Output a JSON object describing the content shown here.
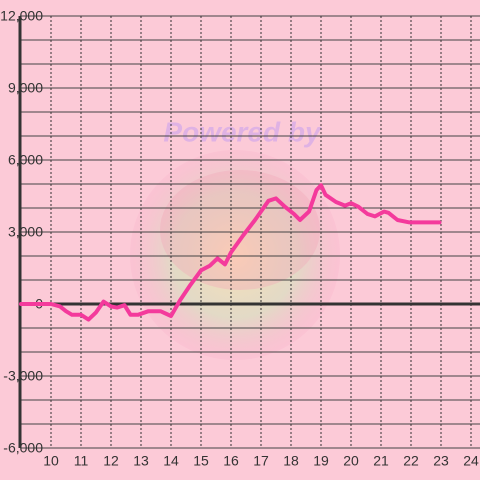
{
  "chart_data": {
    "type": "line",
    "watermark": "Powered by",
    "x": [
      9,
      10,
      10.3,
      10.5,
      10.7,
      11,
      11.25,
      11.5,
      11.75,
      12,
      12.2,
      12.45,
      12.65,
      12.9,
      13.25,
      13.65,
      14,
      14.3,
      14.65,
      15,
      15.3,
      15.55,
      15.8,
      16,
      16.4,
      16.8,
      17.25,
      17.5,
      17.8,
      18.1,
      18.3,
      18.6,
      18.85,
      19,
      19.15,
      19.5,
      19.8,
      20,
      20.25,
      20.55,
      20.8,
      21.1,
      21.25,
      21.55,
      21.95,
      22.95
    ],
    "values": [
      0,
      0,
      -100,
      -300,
      -450,
      -450,
      -650,
      -350,
      100,
      -100,
      -150,
      -50,
      -450,
      -450,
      -300,
      -300,
      -500,
      150,
      800,
      1400,
      1600,
      1900,
      1650,
      2150,
      2850,
      3500,
      4300,
      4400,
      4050,
      3750,
      3500,
      3850,
      4750,
      4950,
      4550,
      4250,
      4100,
      4200,
      4050,
      3750,
      3650,
      3850,
      3800,
      3500,
      3400,
      3400
    ],
    "color": "#f43a9c",
    "xlim": [
      9,
      24.3
    ],
    "xticks": [
      10,
      11,
      12,
      13,
      14,
      15,
      16,
      17,
      18,
      19,
      20,
      21,
      22,
      23,
      24
    ],
    "ylim": [
      -6000,
      12000
    ],
    "yticks": [
      {
        "value": -6000,
        "label": "-6,000"
      },
      {
        "value": -3000,
        "label": "-3,000"
      },
      0,
      {
        "value": 3000,
        "label": "3,000"
      },
      {
        "value": 6000,
        "label": "6,000"
      },
      {
        "value": 9000,
        "label": "9,000"
      },
      {
        "value": 12000,
        "label": "12,000"
      }
    ],
    "ygrid": [
      -6000,
      -5000,
      -4000,
      -3000,
      -2000,
      -1000,
      0,
      1000,
      2000,
      3000,
      4000,
      5000,
      6000,
      7000,
      8000,
      9000,
      10000,
      11000,
      12000
    ],
    "grid": true
  }
}
